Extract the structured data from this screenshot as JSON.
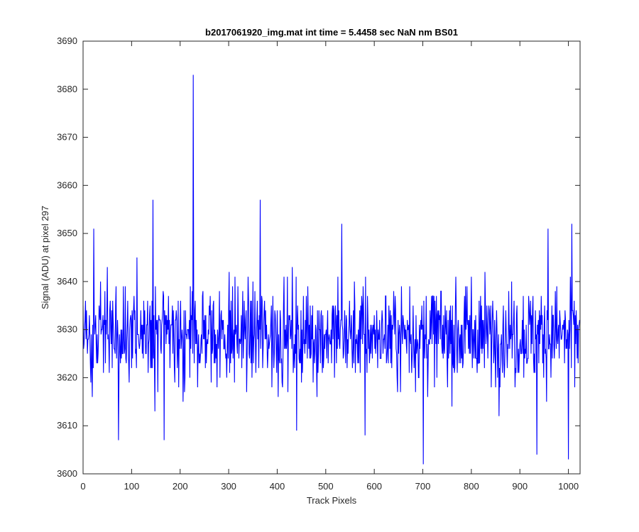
{
  "chart_data": {
    "type": "line",
    "title": "b2017061920_img.mat int time = 5.4458 sec  NaN nm BS01",
    "xlabel": "Track Pixels",
    "ylabel": "Signal (ADU) at pixel 297",
    "xlim": [
      0,
      1024
    ],
    "ylim": [
      3600,
      3690
    ],
    "xticks": [
      0,
      100,
      200,
      300,
      400,
      500,
      600,
      700,
      800,
      900,
      1000
    ],
    "yticks": [
      3600,
      3610,
      3620,
      3630,
      3640,
      3650,
      3660,
      3670,
      3680,
      3690
    ],
    "grid": false,
    "legend": "none",
    "series": [
      {
        "color": "#0000ff",
        "n_points": 1024,
        "baseline": 3629,
        "spikes": [
          {
            "x": 22,
            "y": 3651
          },
          {
            "x": 73,
            "y": 3607
          },
          {
            "x": 144,
            "y": 3657
          },
          {
            "x": 167,
            "y": 3607
          },
          {
            "x": 227,
            "y": 3683
          },
          {
            "x": 365,
            "y": 3657
          },
          {
            "x": 440,
            "y": 3609
          },
          {
            "x": 533,
            "y": 3652
          },
          {
            "x": 581,
            "y": 3608
          },
          {
            "x": 701,
            "y": 3602
          },
          {
            "x": 935,
            "y": 3604
          },
          {
            "x": 958,
            "y": 3651
          },
          {
            "x": 1000,
            "y": 3603
          },
          {
            "x": 1007,
            "y": 3652
          }
        ]
      }
    ]
  }
}
